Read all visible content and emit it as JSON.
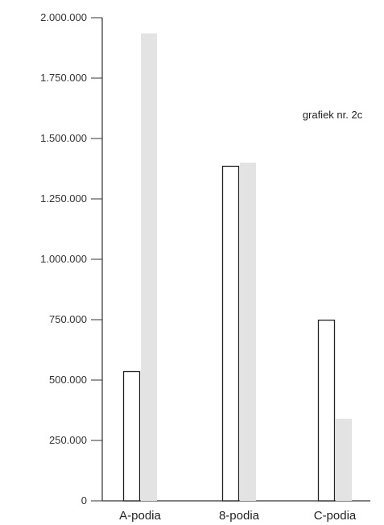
{
  "chart_data": {
    "type": "bar",
    "annotation": "grafiek nr. 2c",
    "categories": [
      "A-podia",
      "8-podia",
      "C-podia"
    ],
    "series": [
      {
        "values": [
          535000,
          1385000,
          748000
        ],
        "color": "#ffffff",
        "stroke": "#222222"
      },
      {
        "values": [
          1935000,
          1400000,
          340000
        ],
        "color": "#e3e3e3"
      }
    ],
    "yticks": [
      "0",
      "250.000",
      "500.000",
      "750.000",
      "1.000.000",
      "1.250.000",
      "1.500.000",
      "1.750.000",
      "2.000.000"
    ],
    "ylim": [
      0,
      2000000
    ],
    "grid": false,
    "legend": "none"
  }
}
